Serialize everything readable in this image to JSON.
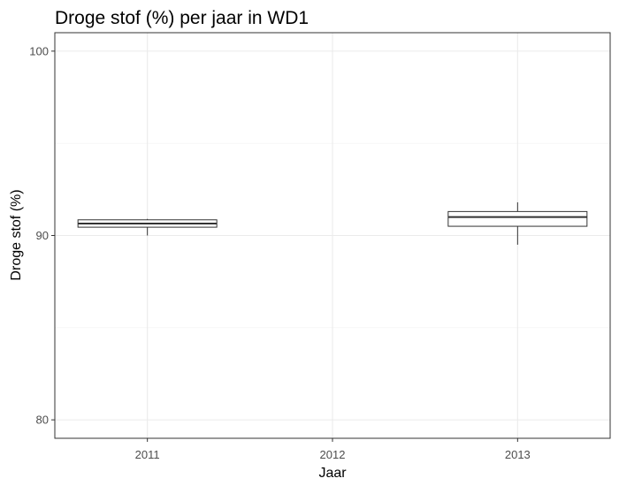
{
  "chart_data": {
    "type": "boxplot",
    "title": "Droge stof (%) per jaar in WD1",
    "xlabel": "Jaar",
    "ylabel": "Droge stof (%)",
    "categories": [
      "2011",
      "2012",
      "2013"
    ],
    "y_ticks": [
      80,
      90,
      100
    ],
    "ylim": [
      79,
      101
    ],
    "grid": true,
    "boxes": [
      {
        "category": "2011",
        "min": 90.0,
        "q1": 90.45,
        "median": 90.65,
        "q3": 90.85,
        "max": 90.9
      },
      {
        "category": "2013",
        "min": 89.5,
        "q1": 90.5,
        "median": 91.0,
        "q3": 91.3,
        "max": 91.8
      }
    ]
  }
}
